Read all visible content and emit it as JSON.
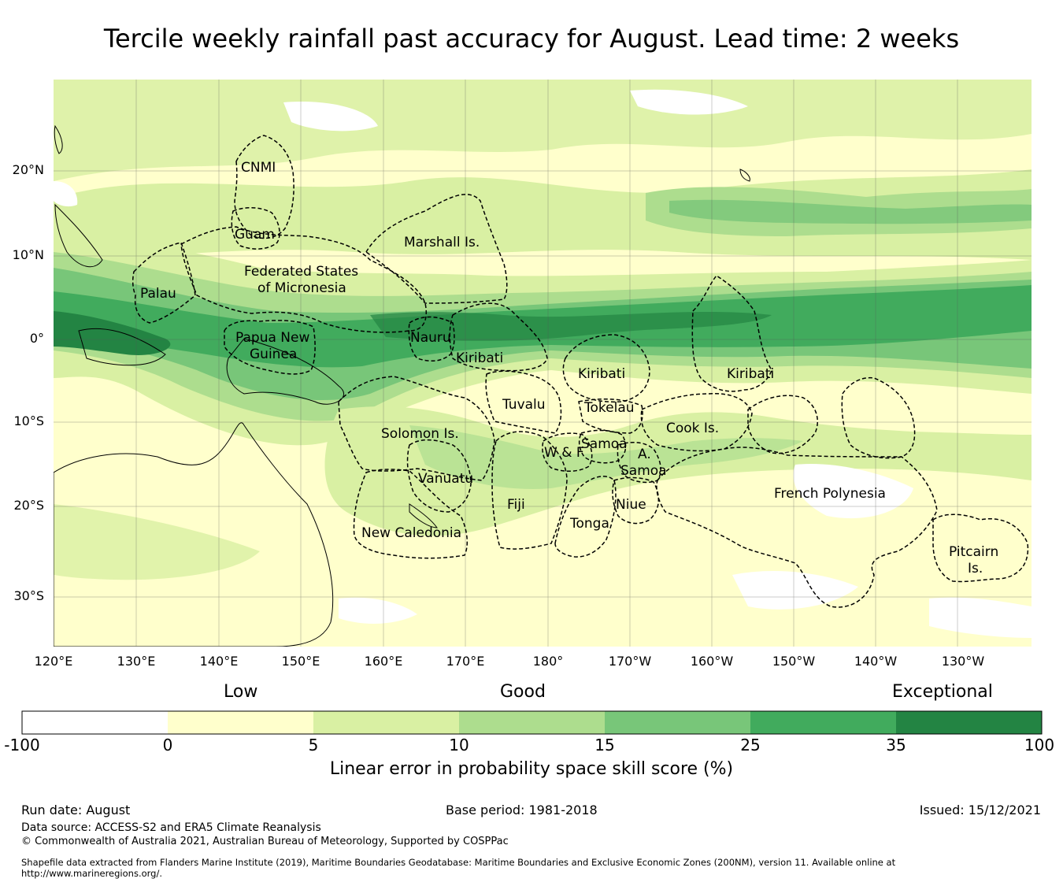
{
  "title": "Tercile weekly rainfall past accuracy for August. Lead time: 2 weeks",
  "map": {
    "lat_ticks": [
      "20°N",
      "10°N",
      "0°",
      "10°S",
      "20°S",
      "30°S"
    ],
    "lon_ticks": [
      "120°E",
      "130°E",
      "140°E",
      "150°E",
      "160°E",
      "170°E",
      "180°",
      "170°W",
      "160°W",
      "150°W",
      "140°W",
      "130°W"
    ],
    "regions": {
      "cnmi": "CNMI",
      "guam": "Guam",
      "marshall": "Marshall Is.",
      "fsm_1": "Federated States",
      "fsm_2": "of Micronesia",
      "palau": "Palau",
      "png_1": "Papua New",
      "png_2": "Guinea",
      "nauru": "Nauru",
      "kiribati_w": "Kiribati",
      "kiribati_c": "Kiribati",
      "kiribati_e": "Kiribati",
      "tuvalu": "Tuvalu",
      "tokelau": "Tokelau",
      "solomon": "Solomon Is.",
      "samoa": "Samoa",
      "wf": "W & F",
      "asamoa_1": "A.",
      "asamoa_2": "Samoa",
      "cook": "Cook Is.",
      "vanuatu": "Vanuatu",
      "fiji": "Fiji",
      "niue": "Niue",
      "tonga": "Tonga",
      "french_polynesia": "French Polynesia",
      "new_caledonia": "New Caledonia",
      "pitcairn_1": "Pitcairn",
      "pitcairn_2": "Is."
    },
    "colors": {
      "band_0": "#ffffff",
      "band_1": "#ffffcc",
      "band_2": "#d9f0a3",
      "band_3": "#addd8e",
      "band_4": "#78c679",
      "band_5": "#41ab5d",
      "band_6": "#238443"
    }
  },
  "colorbar": {
    "category_labels": [
      "Low",
      "Good",
      "Exceptional"
    ],
    "ticks": [
      "-100",
      "0",
      "5",
      "10",
      "15",
      "25",
      "35",
      "100"
    ],
    "colors": [
      "#ffffff",
      "#ffffcc",
      "#d9f0a3",
      "#addd8e",
      "#78c679",
      "#41ab5d",
      "#238443"
    ],
    "label": "Linear error in probability space skill score (%)"
  },
  "footer": {
    "run_date": "Run date: August",
    "base_period": "Base period: 1981-2018",
    "issued": "Issued: 15/12/2021",
    "data_source": "Data source: ACCESS-S2 and ERA5 Climate Reanalysis",
    "copyright": "© Commonwealth of Australia 2021, Australian Bureau of Meteorology, Supported by COSPPac",
    "shapefile_1": "Shapefile data extracted from Flanders Marine Institute (2019), Maritime Boundaries Geodatabase: Maritime Boundaries and Exclusive Economic Zones (200NM), version 11. Available online at",
    "shapefile_2": "http://www.marineregions.org/."
  }
}
